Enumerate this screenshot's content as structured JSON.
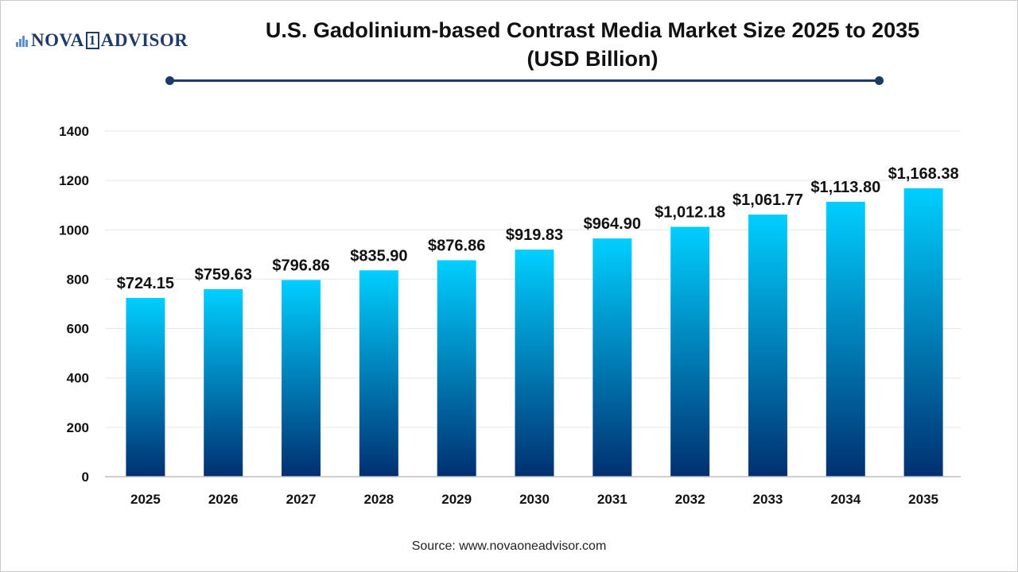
{
  "brand": {
    "name_left": "NOVA",
    "name_mid": "1",
    "name_right": "ADVISOR"
  },
  "header": {
    "title_line1": "U.S. Gadolinium-based Contrast Media Market Size 2025 to 2035",
    "title_line2": "(USD Billion)"
  },
  "footer": {
    "source": "Source: www.novaoneadvisor.com"
  },
  "colors": {
    "bar_top": "#00cfff",
    "bar_bottom": "#003070",
    "accent": "#1f3a68",
    "grid": "#e6e6e6"
  },
  "chart_data": {
    "type": "bar",
    "title": "U.S. Gadolinium-based Contrast Media Market Size 2025 to 2035 (USD Billion)",
    "xlabel": "",
    "ylabel": "",
    "ylim": [
      0,
      1400
    ],
    "yticks": [
      0,
      200,
      400,
      600,
      800,
      1000,
      1200,
      1400
    ],
    "grid": true,
    "categories": [
      "2025",
      "2026",
      "2027",
      "2028",
      "2029",
      "2030",
      "2031",
      "2032",
      "2033",
      "2034",
      "2035"
    ],
    "values": [
      724.15,
      759.63,
      796.86,
      835.9,
      876.86,
      919.83,
      964.9,
      1012.18,
      1061.77,
      1113.8,
      1168.38
    ],
    "labels": [
      "$724.15",
      "$759.63",
      "$796.86",
      "$835.90",
      "$876.86",
      "$919.83",
      "$964.90",
      "$1,012.18",
      "$1,061.77",
      "$1,113.80",
      "$1,168.38"
    ]
  }
}
